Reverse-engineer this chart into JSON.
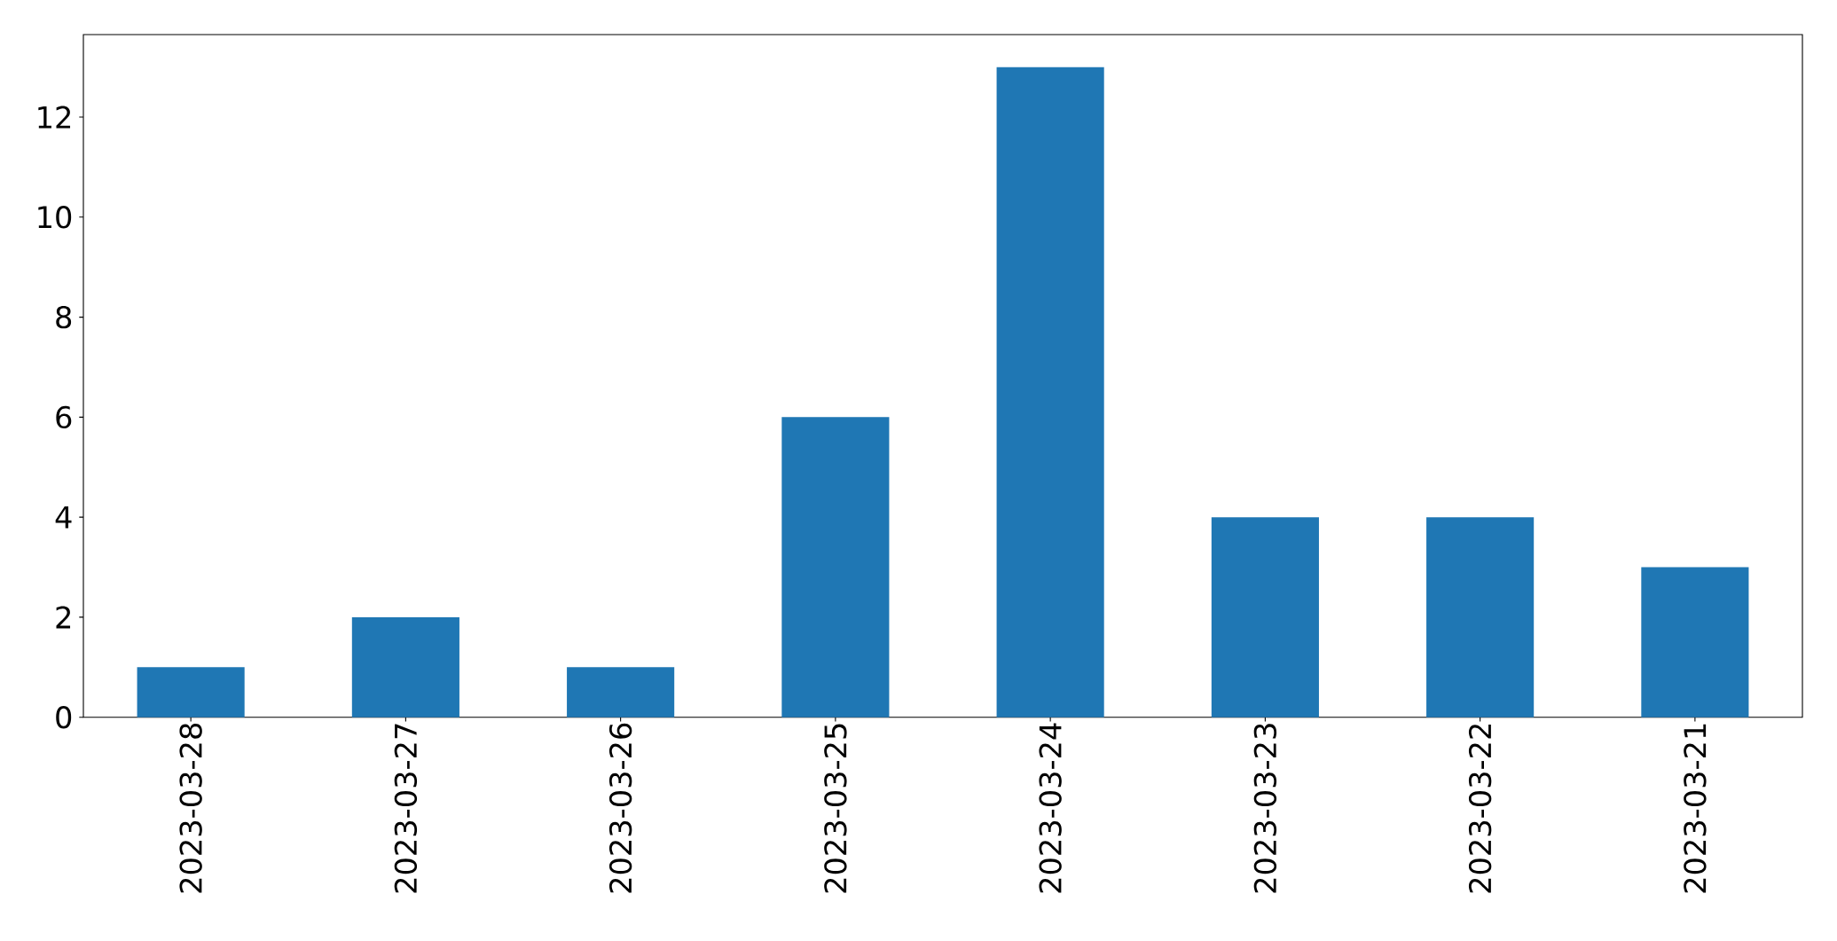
{
  "chart_data": {
    "type": "bar",
    "categories": [
      "2023-03-28",
      "2023-03-27",
      "2023-03-26",
      "2023-03-25",
      "2023-03-24",
      "2023-03-23",
      "2023-03-22",
      "2023-03-21"
    ],
    "values": [
      1,
      2,
      1,
      6,
      13,
      4,
      4,
      3
    ],
    "color": "#1f77b4",
    "ylim": [
      0,
      13.65
    ],
    "yticks": [
      0,
      2,
      4,
      6,
      8,
      10,
      12
    ]
  }
}
